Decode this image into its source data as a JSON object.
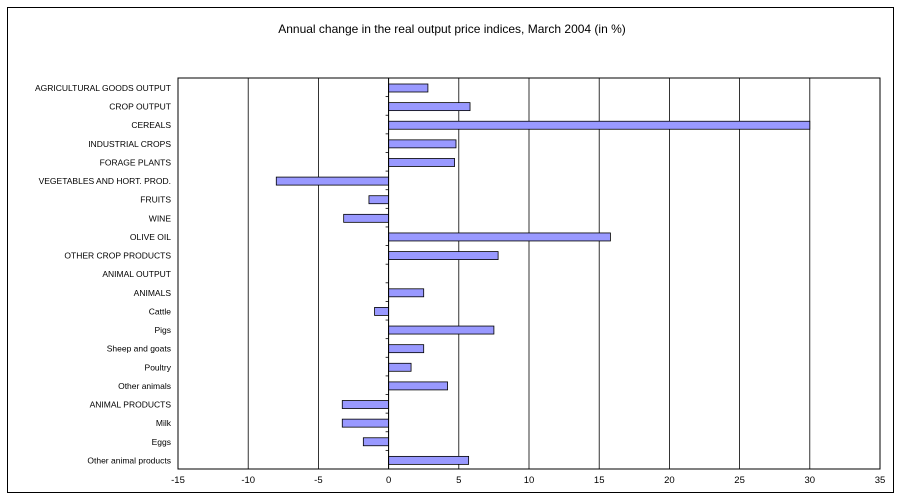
{
  "chart_data": {
    "type": "bar",
    "orientation": "horizontal",
    "title": "Annual change in the real output price indices,  March 2004 (in %)",
    "xlim": [
      -15,
      35
    ],
    "xticks": [
      -15,
      -10,
      -5,
      0,
      5,
      10,
      15,
      20,
      25,
      30,
      35
    ],
    "grid": "vertical",
    "bar_color": "#9999ff",
    "categories": [
      "AGRICULTURAL GOODS OUTPUT",
      "CROP OUTPUT",
      "CEREALS",
      "INDUSTRIAL CROPS",
      "FORAGE PLANTS",
      "VEGETABLES AND HORT. PROD.",
      "FRUITS",
      "WINE",
      "OLIVE OIL",
      "OTHER CROP PRODUCTS",
      "ANIMAL OUTPUT",
      "ANIMALS",
      "Cattle",
      "Pigs",
      "Sheep and goats",
      "Poultry",
      "Other animals",
      "ANIMAL PRODUCTS",
      "Milk",
      "Eggs",
      "Other animal products"
    ],
    "values": [
      2.8,
      5.8,
      30.0,
      4.8,
      4.7,
      -8.0,
      -1.4,
      -3.2,
      15.8,
      7.8,
      0.0,
      2.5,
      -1.0,
      7.5,
      2.5,
      1.6,
      4.2,
      -3.3,
      -3.3,
      -1.8,
      5.7
    ]
  }
}
